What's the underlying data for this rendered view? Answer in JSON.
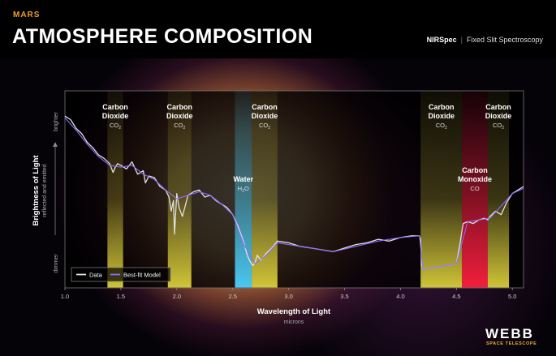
{
  "header": {
    "subtitle": "MARS",
    "title": "ATMOSPHERE COMPOSITION",
    "instrument_name": "NIRSpec",
    "instrument_mode": "Fixed Slit Spectroscopy"
  },
  "branding": {
    "logo_text": "WEBB",
    "logo_subtext": "SPACE TELESCOPE"
  },
  "colors": {
    "co2_band": "#f2e640",
    "water_band": "#4cd2ff",
    "co_band": "#ff2040",
    "data_line": "#e0e0e0",
    "model_line": "#8a6cff",
    "accent": "#f0a030"
  },
  "chart_data": {
    "type": "line",
    "xlabel": "Wavelength of Light",
    "xunit": "microns",
    "ylabel": "Brightness of Light",
    "ysublabel": "reflected and emitted",
    "y_top_label": "brighter",
    "y_bottom_label": "dimmer",
    "xlim": [
      1.0,
      5.1
    ],
    "ylim": [
      0,
      10
    ],
    "xticks": [
      "1.0",
      "1.5",
      "2.0",
      "2.5",
      "3.0",
      "3.5",
      "4.0",
      "4.5",
      "5.0"
    ],
    "legend": {
      "position": "bottom-left",
      "entries": [
        "Data",
        "Best-fit Model"
      ]
    },
    "bands": [
      {
        "label_line1": "Carbon",
        "label_line2": "Dioxide",
        "formula_main": "CO",
        "formula_sub": "2",
        "x_start": 1.38,
        "x_end": 1.52,
        "kind": "co2"
      },
      {
        "label_line1": "Carbon",
        "label_line2": "Dioxide",
        "formula_main": "CO",
        "formula_sub": "2",
        "x_start": 1.92,
        "x_end": 2.13,
        "kind": "co2"
      },
      {
        "label_line1": "Water",
        "label_line2": "",
        "formula_main": "H",
        "formula_sub": "2",
        "formula_tail": "O",
        "x_start": 2.52,
        "x_end": 2.67,
        "kind": "water"
      },
      {
        "label_line1": "Carbon",
        "label_line2": "Dioxide",
        "formula_main": "CO",
        "formula_sub": "2",
        "x_start": 2.67,
        "x_end": 2.9,
        "kind": "co2"
      },
      {
        "label_line1": "Carbon",
        "label_line2": "Dioxide",
        "formula_main": "CO",
        "formula_sub": "2",
        "x_start": 4.18,
        "x_end": 4.55,
        "kind": "co2"
      },
      {
        "label_line1": "Carbon",
        "label_line2": "Monoxide",
        "formula_main": "CO",
        "formula_sub": "",
        "x_start": 4.55,
        "x_end": 4.78,
        "kind": "co"
      },
      {
        "label_line1": "Carbon",
        "label_line2": "Dioxide",
        "formula_main": "CO",
        "formula_sub": "2",
        "x_start": 4.78,
        "x_end": 4.97,
        "kind": "co2"
      }
    ],
    "series": [
      {
        "name": "Data",
        "x": [
          1.0,
          1.05,
          1.1,
          1.15,
          1.2,
          1.25,
          1.3,
          1.35,
          1.4,
          1.43,
          1.45,
          1.47,
          1.5,
          1.55,
          1.6,
          1.65,
          1.7,
          1.72,
          1.75,
          1.8,
          1.85,
          1.9,
          1.93,
          1.95,
          1.97,
          1.98,
          2.0,
          2.02,
          2.05,
          2.08,
          2.1,
          2.15,
          2.2,
          2.25,
          2.3,
          2.35,
          2.4,
          2.45,
          2.5,
          2.55,
          2.6,
          2.63,
          2.65,
          2.68,
          2.7,
          2.72,
          2.75,
          2.8,
          2.85,
          2.9,
          3.0,
          3.1,
          3.2,
          3.3,
          3.4,
          3.5,
          3.6,
          3.7,
          3.8,
          3.9,
          4.0,
          4.1,
          4.17,
          4.18,
          4.19,
          4.2,
          4.3,
          4.4,
          4.5,
          4.53,
          4.56,
          4.6,
          4.65,
          4.7,
          4.75,
          4.78,
          4.8,
          4.85,
          4.9,
          4.95,
          5.0,
          5.05,
          5.1
        ],
        "y": [
          9.3,
          9.1,
          8.6,
          8.3,
          7.8,
          7.5,
          7.1,
          6.9,
          6.6,
          6.1,
          6.4,
          6.6,
          6.5,
          6.3,
          6.7,
          6.0,
          6.2,
          5.5,
          5.9,
          5.8,
          5.3,
          5.1,
          4.7,
          3.9,
          4.5,
          2.6,
          4.9,
          4.1,
          3.6,
          4.3,
          4.8,
          5.0,
          5.1,
          4.7,
          4.8,
          4.5,
          4.3,
          4.1,
          3.7,
          3.0,
          2.1,
          1.4,
          1.1,
          0.8,
          1.0,
          1.4,
          1.1,
          1.5,
          1.8,
          2.2,
          2.1,
          1.9,
          1.8,
          1.7,
          1.6,
          1.8,
          2.0,
          2.1,
          2.3,
          2.2,
          2.4,
          2.5,
          2.5,
          2.3,
          0.8,
          0.6,
          0.7,
          0.8,
          0.9,
          2.0,
          3.2,
          3.3,
          3.2,
          3.4,
          3.5,
          3.4,
          3.6,
          3.9,
          3.7,
          4.4,
          4.9,
          5.1,
          5.3
        ]
      },
      {
        "name": "Best-fit Model",
        "x": [
          1.0,
          1.1,
          1.2,
          1.3,
          1.4,
          1.5,
          1.6,
          1.7,
          1.8,
          1.9,
          2.0,
          2.1,
          2.2,
          2.3,
          2.4,
          2.5,
          2.6,
          2.7,
          2.8,
          2.9,
          3.0,
          3.2,
          3.4,
          3.6,
          3.8,
          4.0,
          4.17,
          4.2,
          4.4,
          4.5,
          4.6,
          4.8,
          5.0,
          5.1
        ],
        "y": [
          9.2,
          8.5,
          7.7,
          7.0,
          6.5,
          6.4,
          6.5,
          6.0,
          5.7,
          5.1,
          4.6,
          4.8,
          5.0,
          4.8,
          4.3,
          3.7,
          2.0,
          0.9,
          1.4,
          2.1,
          2.0,
          1.8,
          1.6,
          1.9,
          2.2,
          2.4,
          2.5,
          0.6,
          0.8,
          0.9,
          3.3,
          3.5,
          4.9,
          5.2
        ]
      }
    ]
  }
}
